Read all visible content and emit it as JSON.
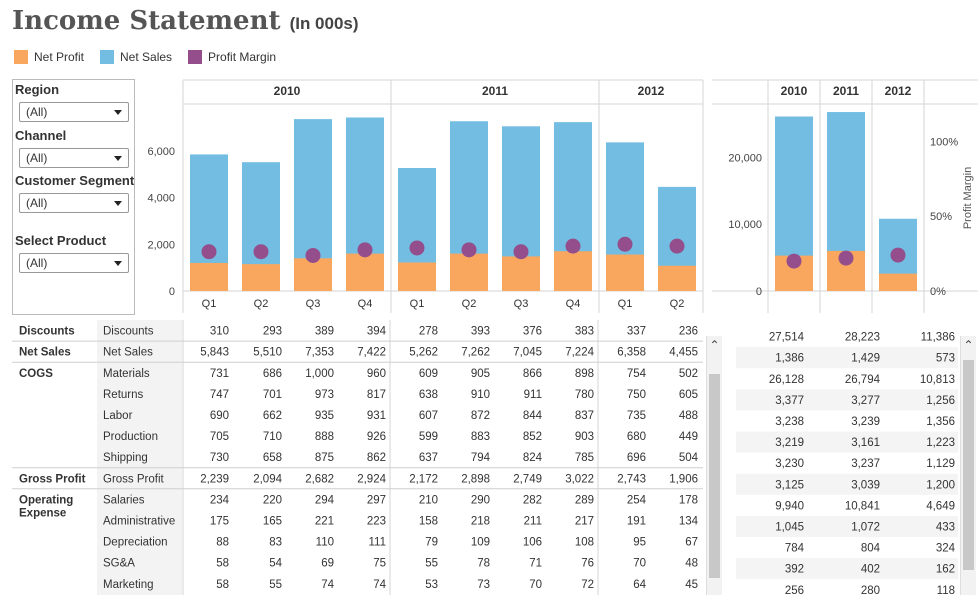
{
  "header": {
    "title": "Income Statement",
    "subtitle": "(In 000s)"
  },
  "legend": [
    {
      "label": "Net Profit",
      "color": "#f9a75f"
    },
    {
      "label": "Net Sales",
      "color": "#72bde1"
    },
    {
      "label": "Profit Margin",
      "color": "#954e8c"
    }
  ],
  "filters": [
    {
      "label": "Region",
      "value": "(All)"
    },
    {
      "label": "Channel",
      "value": "(All)"
    },
    {
      "label": "Customer Segment",
      "value": "(All)"
    },
    {
      "label": "Select Product",
      "value": "(All)"
    }
  ],
  "chart_data": [
    {
      "type": "bar",
      "years": [
        "2010",
        "2011",
        "2012"
      ],
      "categories": [
        "Q1",
        "Q2",
        "Q3",
        "Q4",
        "Q1",
        "Q2",
        "Q3",
        "Q4",
        "Q1",
        "Q2"
      ],
      "category_years": [
        "2010",
        "2010",
        "2010",
        "2010",
        "2011",
        "2011",
        "2011",
        "2011",
        "2012",
        "2012"
      ],
      "series": [
        {
          "name": "Net Sales",
          "values": [
            5843,
            5510,
            7353,
            7422,
            5262,
            7262,
            7045,
            7224,
            6358,
            4455
          ]
        },
        {
          "name": "Net Profit",
          "values": [
            1200,
            1150,
            1400,
            1600,
            1220,
            1600,
            1480,
            1700,
            1560,
            1080
          ]
        },
        {
          "name": "Profit Margin",
          "values": [
            0.21,
            0.21,
            0.19,
            0.22,
            0.23,
            0.22,
            0.21,
            0.24,
            0.25,
            0.24
          ]
        }
      ],
      "yticks": [
        "0",
        "2,000",
        "4,000",
        "6,000"
      ],
      "ylim": [
        0,
        8000
      ]
    },
    {
      "type": "bar",
      "categories": [
        "2010",
        "2011",
        "2012"
      ],
      "series": [
        {
          "name": "Net Sales",
          "values": [
            26128,
            26794,
            10813
          ]
        },
        {
          "name": "Net Profit",
          "values": [
            5300,
            6000,
            2600
          ]
        },
        {
          "name": "Profit Margin",
          "values": [
            0.2,
            0.22,
            0.24
          ]
        }
      ],
      "yticks": [
        "0",
        "10,000",
        "20,000"
      ],
      "ylim": [
        0,
        28000
      ],
      "y2ticks": [
        "0%",
        "50%",
        "100%"
      ],
      "y2label": "Profit Margin"
    }
  ],
  "table": {
    "rows": [
      {
        "group": "Discounts",
        "label": "Discounts",
        "values": [
          "310",
          "293",
          "389",
          "394",
          "278",
          "393",
          "376",
          "383",
          "337",
          "236"
        ]
      },
      {
        "group": "Net Sales",
        "label": "Net Sales",
        "values": [
          "5,843",
          "5,510",
          "7,353",
          "7,422",
          "5,262",
          "7,262",
          "7,045",
          "7,224",
          "6,358",
          "4,455"
        ]
      },
      {
        "group": "COGS",
        "label": "Materials",
        "values": [
          "731",
          "686",
          "1,000",
          "960",
          "609",
          "905",
          "866",
          "898",
          "754",
          "502"
        ]
      },
      {
        "group": "",
        "label": "Returns",
        "values": [
          "747",
          "701",
          "973",
          "817",
          "638",
          "910",
          "911",
          "780",
          "750",
          "605"
        ]
      },
      {
        "group": "",
        "label": "Labor",
        "values": [
          "690",
          "662",
          "935",
          "931",
          "607",
          "872",
          "844",
          "837",
          "735",
          "488"
        ]
      },
      {
        "group": "",
        "label": "Production",
        "values": [
          "705",
          "710",
          "888",
          "926",
          "599",
          "883",
          "852",
          "903",
          "680",
          "449"
        ]
      },
      {
        "group": "",
        "label": "Shipping",
        "values": [
          "730",
          "658",
          "875",
          "862",
          "637",
          "794",
          "824",
          "785",
          "696",
          "504"
        ]
      },
      {
        "group": "Gross Profit",
        "label": "Gross Profit",
        "values": [
          "2,239",
          "2,094",
          "2,682",
          "2,924",
          "2,172",
          "2,898",
          "2,749",
          "3,022",
          "2,743",
          "1,906"
        ]
      },
      {
        "group": "Operating Expense",
        "label": "Salaries",
        "values": [
          "234",
          "220",
          "294",
          "297",
          "210",
          "290",
          "282",
          "289",
          "254",
          "178"
        ]
      },
      {
        "group": "",
        "label": "Administrative",
        "values": [
          "175",
          "165",
          "221",
          "223",
          "158",
          "218",
          "211",
          "217",
          "191",
          "134"
        ]
      },
      {
        "group": "",
        "label": "Depreciation",
        "values": [
          "88",
          "83",
          "110",
          "111",
          "79",
          "109",
          "106",
          "108",
          "95",
          "67"
        ]
      },
      {
        "group": "",
        "label": "SG&A",
        "values": [
          "58",
          "54",
          "69",
          "75",
          "55",
          "78",
          "71",
          "76",
          "70",
          "48"
        ]
      },
      {
        "group": "",
        "label": "Marketing",
        "values": [
          "58",
          "55",
          "74",
          "74",
          "53",
          "73",
          "70",
          "72",
          "64",
          "45"
        ]
      }
    ],
    "totals": [
      [
        "27,514",
        "28,223",
        "11,386"
      ],
      [
        "1,386",
        "1,429",
        "573"
      ],
      [
        "26,128",
        "26,794",
        "10,813"
      ],
      [
        "3,377",
        "3,277",
        "1,256"
      ],
      [
        "3,238",
        "3,239",
        "1,356"
      ],
      [
        "3,219",
        "3,161",
        "1,223"
      ],
      [
        "3,230",
        "3,237",
        "1,129"
      ],
      [
        "3,125",
        "3,039",
        "1,200"
      ],
      [
        "9,940",
        "10,841",
        "4,649"
      ],
      [
        "1,045",
        "1,072",
        "433"
      ],
      [
        "784",
        "804",
        "324"
      ],
      [
        "392",
        "402",
        "162"
      ],
      [
        "256",
        "280",
        "118"
      ]
    ]
  }
}
